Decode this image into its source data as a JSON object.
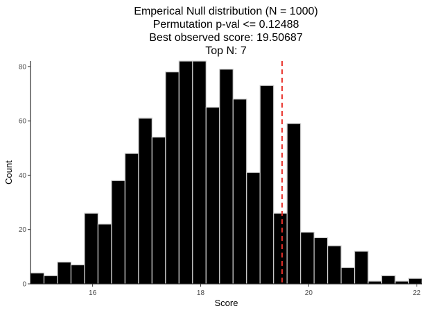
{
  "chart_data": {
    "type": "bar",
    "title_lines": [
      "Emperical Null distribution (N = 1000)",
      "Permutation p-val <= 0.12488",
      "Best observed score: 19.50687",
      "Top N: 7"
    ],
    "xlabel": "Score",
    "ylabel": "Count",
    "xlim": [
      14.85,
      22.1
    ],
    "ylim": [
      0,
      82
    ],
    "x_ticks": [
      16,
      18,
      20,
      22
    ],
    "y_ticks": [
      0,
      20,
      40,
      60,
      80
    ],
    "bin_width": 0.25,
    "bins": [
      {
        "x0": 14.85,
        "x1": 15.1,
        "count": 4
      },
      {
        "x0": 15.1,
        "x1": 15.35,
        "count": 3
      },
      {
        "x0": 15.35,
        "x1": 15.6,
        "count": 8
      },
      {
        "x0": 15.6,
        "x1": 15.85,
        "count": 7
      },
      {
        "x0": 15.85,
        "x1": 16.1,
        "count": 26
      },
      {
        "x0": 16.1,
        "x1": 16.35,
        "count": 22
      },
      {
        "x0": 16.35,
        "x1": 16.6,
        "count": 38
      },
      {
        "x0": 16.6,
        "x1": 16.85,
        "count": 48
      },
      {
        "x0": 16.85,
        "x1": 17.1,
        "count": 61
      },
      {
        "x0": 17.1,
        "x1": 17.35,
        "count": 54
      },
      {
        "x0": 17.35,
        "x1": 17.6,
        "count": 78
      },
      {
        "x0": 17.6,
        "x1": 17.85,
        "count": 82
      },
      {
        "x0": 17.85,
        "x1": 18.1,
        "count": 82
      },
      {
        "x0": 18.1,
        "x1": 18.35,
        "count": 65
      },
      {
        "x0": 18.35,
        "x1": 18.6,
        "count": 79
      },
      {
        "x0": 18.6,
        "x1": 18.85,
        "count": 68
      },
      {
        "x0": 18.85,
        "x1": 19.1,
        "count": 41
      },
      {
        "x0": 19.1,
        "x1": 19.35,
        "count": 73
      },
      {
        "x0": 19.35,
        "x1": 19.6,
        "count": 26
      },
      {
        "x0": 19.6,
        "x1": 19.85,
        "count": 59
      },
      {
        "x0": 19.85,
        "x1": 20.1,
        "count": 19
      },
      {
        "x0": 20.1,
        "x1": 20.35,
        "count": 17
      },
      {
        "x0": 20.35,
        "x1": 20.6,
        "count": 14
      },
      {
        "x0": 20.6,
        "x1": 20.85,
        "count": 6
      },
      {
        "x0": 20.85,
        "x1": 21.1,
        "count": 12
      },
      {
        "x0": 21.1,
        "x1": 21.35,
        "count": 1
      },
      {
        "x0": 21.35,
        "x1": 21.6,
        "count": 3
      },
      {
        "x0": 21.6,
        "x1": 21.85,
        "count": 1
      },
      {
        "x0": 21.85,
        "x1": 22.1,
        "count": 2
      },
      {
        "x0": 22.1,
        "x1": 22.35,
        "count": 1
      }
    ],
    "observed_score": 19.50687,
    "reference_line": {
      "x": 19.50687,
      "style": "dashed",
      "color": "#e8312a"
    },
    "bar_fill": "#000000",
    "bar_outline": "#cccccc",
    "grid": false,
    "legend": "none"
  }
}
